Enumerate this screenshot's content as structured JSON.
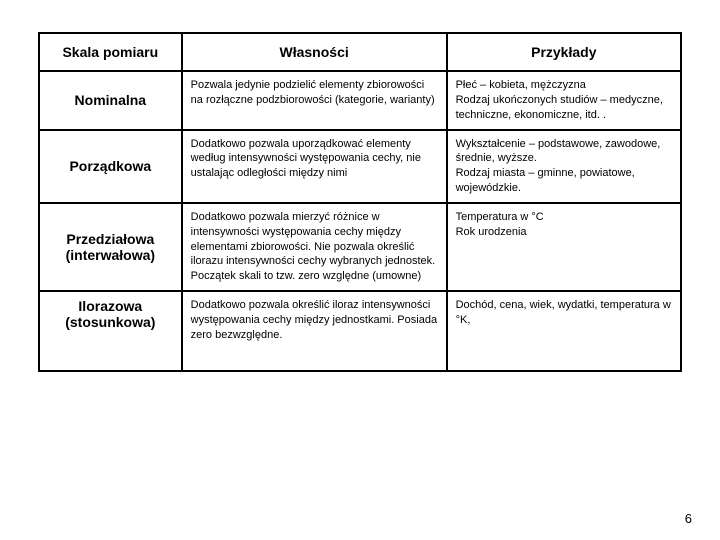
{
  "headers": {
    "scale": "Skala pomiaru",
    "properties": "Własności",
    "examples": "Przykłady"
  },
  "rows": [
    {
      "scale": "Nominalna",
      "properties": "Pozwala jedynie podzielić elementy zbiorowości na rozłączne podzbiorowości (kategorie, warianty)",
      "examples": "Płeć – kobieta, mężczyzna\nRodzaj ukończonych studiów – medyczne, techniczne, ekonomiczne, itd. ."
    },
    {
      "scale": "Porządkowa",
      "properties": "Dodatkowo pozwala uporządkować elementy według intensywności występowania cechy, nie ustalając odległości między nimi",
      "examples": "Wykształcenie – podstawowe, zawodowe, średnie, wyższe.\nRodzaj miasta – gminne, powiatowe, wojewódzkie."
    },
    {
      "scale": "Przedziałowa (interwałowa)",
      "properties": "Dodatkowo pozwala mierzyć różnice w intensywności występowania cechy między elementami zbiorowości. Nie pozwala określić ilorazu intensywności cechy wybranych jednostek.\nPoczątek skali to tzw. zero względne (umowne)",
      "examples": "Temperatura w °C\nRok urodzenia"
    },
    {
      "scale": "Ilorazowa (stosunkowa)",
      "properties": "Dodatkowo pozwala określić iloraz intensywności występowania cechy między jednostkami. Posiada zero bezwzględne.",
      "examples": "Dochód, cena, wiek, wydatki, temperatura w °K,"
    }
  ],
  "pageNumber": "6"
}
